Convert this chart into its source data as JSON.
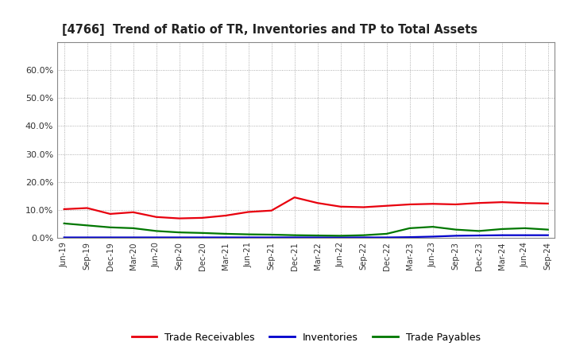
{
  "title": "[4766]  Trend of Ratio of TR, Inventories and TP to Total Assets",
  "x_labels": [
    "Jun-19",
    "Sep-19",
    "Dec-19",
    "Mar-20",
    "Jun-20",
    "Sep-20",
    "Dec-20",
    "Mar-21",
    "Jun-21",
    "Sep-21",
    "Dec-21",
    "Mar-22",
    "Jun-22",
    "Sep-22",
    "Dec-22",
    "Mar-23",
    "Jun-23",
    "Sep-23",
    "Dec-23",
    "Mar-24",
    "Jun-24",
    "Sep-24"
  ],
  "trade_receivables": [
    10.3,
    10.7,
    8.6,
    9.2,
    7.5,
    7.0,
    7.2,
    8.0,
    9.3,
    9.8,
    14.5,
    12.5,
    11.2,
    11.0,
    11.5,
    12.0,
    12.2,
    12.0,
    12.5,
    12.8,
    12.5,
    12.3
  ],
  "inventories": [
    0.2,
    0.2,
    0.2,
    0.2,
    0.2,
    0.2,
    0.2,
    0.2,
    0.2,
    0.2,
    0.2,
    0.2,
    0.2,
    0.2,
    0.2,
    0.3,
    0.5,
    0.8,
    0.9,
    1.0,
    1.0,
    1.0
  ],
  "trade_payables": [
    5.2,
    4.5,
    3.8,
    3.5,
    2.5,
    2.0,
    1.8,
    1.5,
    1.3,
    1.2,
    1.0,
    0.9,
    0.8,
    1.0,
    1.5,
    3.5,
    4.0,
    3.0,
    2.5,
    3.2,
    3.5,
    3.0
  ],
  "tr_color": "#e8000d",
  "inv_color": "#0000cc",
  "tp_color": "#007700",
  "ylim_max": 70,
  "yticks": [
    0,
    10,
    20,
    30,
    40,
    50,
    60
  ],
  "ytick_labels": [
    "0.0%",
    "10.0%",
    "20.0%",
    "30.0%",
    "40.0%",
    "50.0%",
    "60.0%"
  ],
  "background_color": "#ffffff",
  "plot_bg_color": "#ffffff",
  "grid_color": "#999999",
  "legend_labels": [
    "Trade Receivables",
    "Inventories",
    "Trade Payables"
  ]
}
